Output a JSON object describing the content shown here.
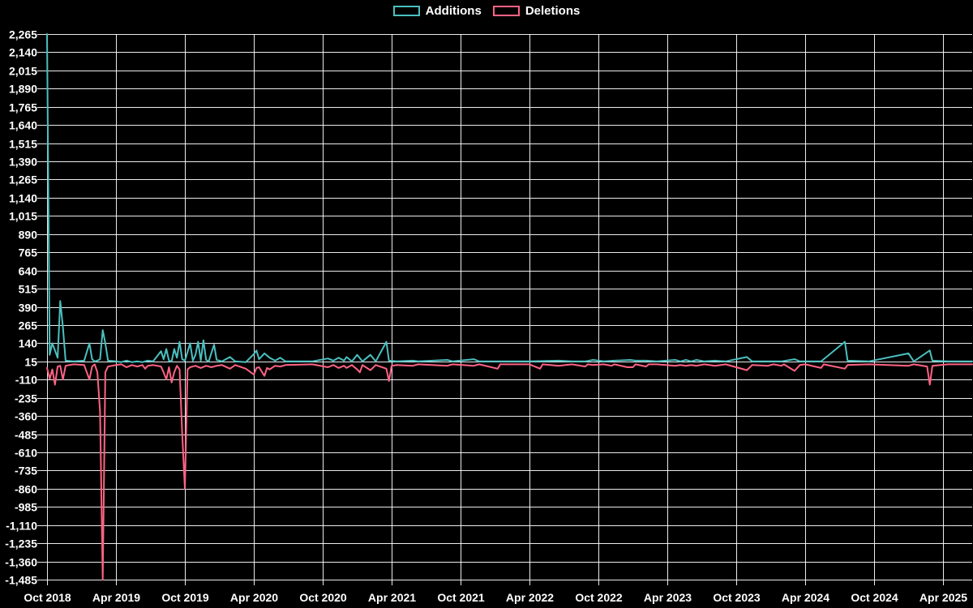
{
  "chart_data": {
    "type": "line",
    "title": "",
    "xlabel": "",
    "ylabel": "",
    "legend_position": "top",
    "background_color": "#000000",
    "grid_color": "#ffffff",
    "grid_on": true,
    "y_min": -1485,
    "y_max": 2265,
    "y_tick_step": 125,
    "y_tick_labels": [
      "2,265",
      "2,140",
      "2,015",
      "1,890",
      "1,765",
      "1,640",
      "1,515",
      "1,390",
      "1,265",
      "1,140",
      "1,015",
      "890",
      "765",
      "640",
      "515",
      "390",
      "265",
      "140",
      "15",
      "-110",
      "-235",
      "-360",
      "-485",
      "-610",
      "-735",
      "-860",
      "-985",
      "-1,110",
      "-1,235",
      "-1,360",
      "-1,485"
    ],
    "x_tick_labels": [
      "Oct 2018",
      "Apr 2019",
      "Oct 2019",
      "Apr 2020",
      "Oct 2020",
      "Apr 2021",
      "Oct 2021",
      "Apr 2022",
      "Oct 2022",
      "Apr 2023",
      "Oct 2023",
      "Apr 2024",
      "Oct 2024",
      "Apr 2025"
    ],
    "x_unit": "weeks since 2018-10-01",
    "weeks_per_x_tick": 26,
    "x_range_weeks": [
      0,
      349
    ],
    "series": [
      {
        "id": "additions",
        "name": "Additions",
        "color": "#4bc0c0",
        "points": [
          [
            0,
            2265
          ],
          [
            1,
            60
          ],
          [
            2,
            140
          ],
          [
            3,
            90
          ],
          [
            4,
            40
          ],
          [
            5,
            430
          ],
          [
            6,
            250
          ],
          [
            7,
            20
          ],
          [
            10,
            15
          ],
          [
            14,
            20
          ],
          [
            16,
            140
          ],
          [
            17,
            30
          ],
          [
            18,
            15
          ],
          [
            19,
            20
          ],
          [
            20,
            30
          ],
          [
            21,
            230
          ],
          [
            22,
            140
          ],
          [
            23,
            20
          ],
          [
            26,
            15
          ],
          [
            28,
            10
          ],
          [
            30,
            20
          ],
          [
            32,
            10
          ],
          [
            34,
            15
          ],
          [
            36,
            10
          ],
          [
            38,
            20
          ],
          [
            40,
            15
          ],
          [
            43,
            85
          ],
          [
            44,
            30
          ],
          [
            45,
            100
          ],
          [
            46,
            20
          ],
          [
            47,
            15
          ],
          [
            48,
            100
          ],
          [
            49,
            40
          ],
          [
            50,
            150
          ],
          [
            51,
            30
          ],
          [
            52,
            20
          ],
          [
            54,
            140
          ],
          [
            55,
            20
          ],
          [
            56,
            60
          ],
          [
            57,
            150
          ],
          [
            58,
            20
          ],
          [
            59,
            160
          ],
          [
            60,
            25
          ],
          [
            61,
            15
          ],
          [
            63,
            130
          ],
          [
            64,
            25
          ],
          [
            66,
            15
          ],
          [
            69,
            45
          ],
          [
            71,
            15
          ],
          [
            75,
            10
          ],
          [
            78,
            65
          ],
          [
            79,
            90
          ],
          [
            80,
            30
          ],
          [
            82,
            70
          ],
          [
            84,
            40
          ],
          [
            86,
            20
          ],
          [
            88,
            40
          ],
          [
            90,
            15
          ],
          [
            100,
            15
          ],
          [
            106,
            35
          ],
          [
            108,
            20
          ],
          [
            110,
            40
          ],
          [
            112,
            20
          ],
          [
            113,
            45
          ],
          [
            115,
            15
          ],
          [
            117,
            60
          ],
          [
            119,
            15
          ],
          [
            122,
            60
          ],
          [
            124,
            15
          ],
          [
            128,
            150
          ],
          [
            129,
            20
          ],
          [
            132,
            15
          ],
          [
            138,
            20
          ],
          [
            140,
            15
          ],
          [
            151,
            25
          ],
          [
            153,
            15
          ],
          [
            161,
            30
          ],
          [
            163,
            15
          ],
          [
            170,
            15
          ],
          [
            182,
            15
          ],
          [
            193,
            20
          ],
          [
            198,
            15
          ],
          [
            203,
            15
          ],
          [
            206,
            25
          ],
          [
            210,
            15
          ],
          [
            214,
            20
          ],
          [
            220,
            25
          ],
          [
            222,
            20
          ],
          [
            226,
            20
          ],
          [
            230,
            15
          ],
          [
            237,
            25
          ],
          [
            239,
            15
          ],
          [
            241,
            25
          ],
          [
            243,
            15
          ],
          [
            245,
            25
          ],
          [
            248,
            15
          ],
          [
            252,
            20
          ],
          [
            256,
            15
          ],
          [
            264,
            45
          ],
          [
            266,
            15
          ],
          [
            272,
            15
          ],
          [
            277,
            15
          ],
          [
            282,
            30
          ],
          [
            284,
            15
          ],
          [
            286,
            15
          ],
          [
            292,
            15
          ],
          [
            301,
            150
          ],
          [
            302,
            20
          ],
          [
            310,
            15
          ],
          [
            325,
            70
          ],
          [
            327,
            15
          ],
          [
            333,
            90
          ],
          [
            334,
            20
          ],
          [
            340,
            15
          ],
          [
            349,
            15
          ]
        ]
      },
      {
        "id": "deletions",
        "name": "Deletions",
        "color": "#ff6384",
        "points": [
          [
            0,
            -30
          ],
          [
            1,
            -105
          ],
          [
            2,
            -40
          ],
          [
            3,
            -145
          ],
          [
            4,
            -20
          ],
          [
            5,
            -15
          ],
          [
            6,
            -110
          ],
          [
            7,
            -15
          ],
          [
            10,
            -5
          ],
          [
            14,
            -10
          ],
          [
            16,
            -110
          ],
          [
            17,
            -20
          ],
          [
            18,
            -5
          ],
          [
            19,
            -60
          ],
          [
            20,
            -330
          ],
          [
            21,
            -1485
          ],
          [
            22,
            -60
          ],
          [
            23,
            -20
          ],
          [
            26,
            -10
          ],
          [
            28,
            -5
          ],
          [
            30,
            -25
          ],
          [
            32,
            -10
          ],
          [
            34,
            -20
          ],
          [
            36,
            -10
          ],
          [
            37,
            -35
          ],
          [
            38,
            -15
          ],
          [
            40,
            -10
          ],
          [
            43,
            -20
          ],
          [
            44,
            -60
          ],
          [
            45,
            -110
          ],
          [
            46,
            -25
          ],
          [
            47,
            -130
          ],
          [
            48,
            -60
          ],
          [
            49,
            -15
          ],
          [
            50,
            -40
          ],
          [
            51,
            -480
          ],
          [
            52,
            -860
          ],
          [
            53,
            -40
          ],
          [
            54,
            -25
          ],
          [
            56,
            -15
          ],
          [
            58,
            -30
          ],
          [
            60,
            -15
          ],
          [
            62,
            -25
          ],
          [
            64,
            -15
          ],
          [
            66,
            -10
          ],
          [
            69,
            -35
          ],
          [
            71,
            -10
          ],
          [
            75,
            -35
          ],
          [
            78,
            -75
          ],
          [
            79,
            -30
          ],
          [
            80,
            -25
          ],
          [
            82,
            -85
          ],
          [
            83,
            -30
          ],
          [
            84,
            -40
          ],
          [
            86,
            -15
          ],
          [
            88,
            -20
          ],
          [
            90,
            -10
          ],
          [
            100,
            -5
          ],
          [
            106,
            -25
          ],
          [
            108,
            -10
          ],
          [
            110,
            -30
          ],
          [
            112,
            -15
          ],
          [
            113,
            -30
          ],
          [
            115,
            -10
          ],
          [
            117,
            -40
          ],
          [
            118,
            -60
          ],
          [
            119,
            -10
          ],
          [
            122,
            -45
          ],
          [
            124,
            -10
          ],
          [
            128,
            -35
          ],
          [
            129,
            -120
          ],
          [
            130,
            -15
          ],
          [
            132,
            -10
          ],
          [
            138,
            -15
          ],
          [
            140,
            -5
          ],
          [
            151,
            -15
          ],
          [
            153,
            -5
          ],
          [
            161,
            -15
          ],
          [
            163,
            -5
          ],
          [
            170,
            -35
          ],
          [
            171,
            -5
          ],
          [
            182,
            -5
          ],
          [
            186,
            -35
          ],
          [
            187,
            -5
          ],
          [
            193,
            -15
          ],
          [
            198,
            -5
          ],
          [
            203,
            -20
          ],
          [
            204,
            -5
          ],
          [
            206,
            -10
          ],
          [
            210,
            -5
          ],
          [
            213,
            -15
          ],
          [
            214,
            -5
          ],
          [
            219,
            -25
          ],
          [
            221,
            -25
          ],
          [
            222,
            -5
          ],
          [
            226,
            -20
          ],
          [
            227,
            -5
          ],
          [
            230,
            -5
          ],
          [
            237,
            -15
          ],
          [
            239,
            -10
          ],
          [
            241,
            -15
          ],
          [
            243,
            -10
          ],
          [
            245,
            -15
          ],
          [
            248,
            -5
          ],
          [
            252,
            -15
          ],
          [
            256,
            -5
          ],
          [
            264,
            -45
          ],
          [
            266,
            -10
          ],
          [
            272,
            -15
          ],
          [
            274,
            -5
          ],
          [
            277,
            -15
          ],
          [
            278,
            -5
          ],
          [
            282,
            -50
          ],
          [
            284,
            -10
          ],
          [
            286,
            -5
          ],
          [
            292,
            -30
          ],
          [
            293,
            -5
          ],
          [
            301,
            -35
          ],
          [
            302,
            -10
          ],
          [
            310,
            -5
          ],
          [
            325,
            -15
          ],
          [
            327,
            -5
          ],
          [
            332,
            -20
          ],
          [
            333,
            -145
          ],
          [
            334,
            -15
          ],
          [
            340,
            -5
          ],
          [
            349,
            -5
          ]
        ]
      }
    ]
  }
}
